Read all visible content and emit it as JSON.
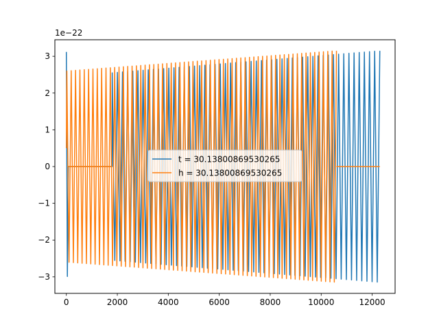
{
  "chart_data": {
    "type": "line",
    "title": "",
    "xlabel": "",
    "ylabel": "",
    "y_offset_text": "1e−22",
    "xlim": [
      -450,
      12900
    ],
    "ylim": [
      -3.45,
      3.45
    ],
    "xticks": [
      0,
      2000,
      4000,
      6000,
      8000,
      10000,
      12000
    ],
    "xtick_labels": [
      "0",
      "2000",
      "4000",
      "6000",
      "8000",
      "10000",
      "12000"
    ],
    "yticks": [
      -3,
      -2,
      -1,
      0,
      1,
      2,
      3
    ],
    "ytick_labels": [
      "−3",
      "−2",
      "−1",
      "0",
      "1",
      "2",
      "3"
    ],
    "grid": false,
    "legend_position": "center",
    "series": [
      {
        "name": "t = 30.13800869530265",
        "color": "#1f77b4",
        "x_start": 0,
        "x_end": 12300,
        "amplitude_start": 2.55,
        "amplitude_end": 3.15,
        "cycles": 58,
        "initial_spike": 3.12,
        "initial_dip": -2.99
      },
      {
        "name": "h = 30.13800869530265",
        "color": "#ff7f0e",
        "zero_segments": [
          [
            80,
            1800
          ],
          [
            10600,
            12300
          ]
        ],
        "x_start": 0,
        "x_end": 10600,
        "amplitude_start": 2.6,
        "amplitude_end": 3.15,
        "cycles": 62
      }
    ]
  }
}
